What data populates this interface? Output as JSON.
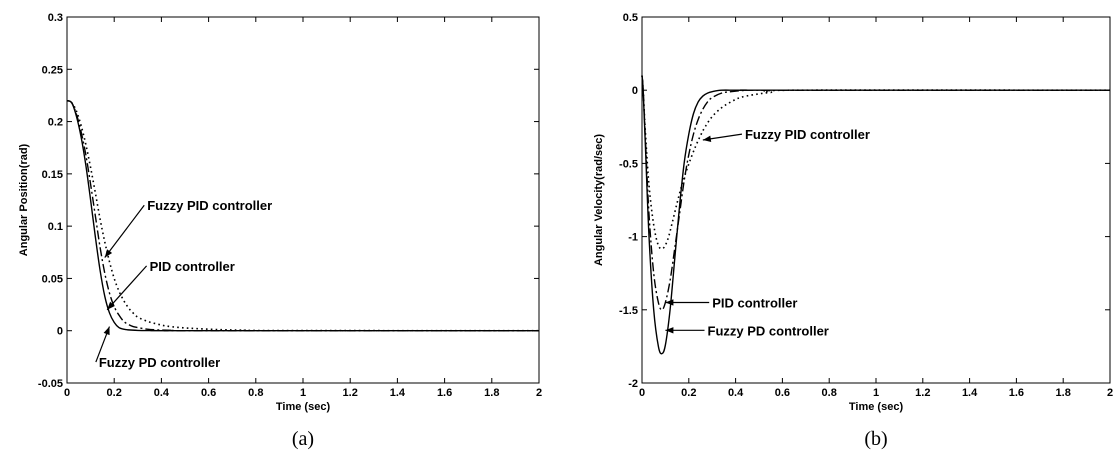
{
  "chart_data": [
    {
      "type": "line",
      "caption": "(a)",
      "xlabel": "Time (sec)",
      "ylabel": "Angular Position(rad)",
      "xlim": [
        0,
        2
      ],
      "ylim": [
        -0.05,
        0.3
      ],
      "xticks": [
        "0",
        "0.2",
        "0.4",
        "0.6",
        "0.8",
        "1",
        "1.2",
        "1.4",
        "1.6",
        "1.8",
        "2"
      ],
      "yticks": [
        "-0.05",
        "0",
        "0.05",
        "0.1",
        "0.15",
        "0.2",
        "0.25",
        "0.3"
      ],
      "grid": false,
      "series": [
        {
          "name": "Fuzzy PD controller",
          "style": "solid",
          "x": [
            0,
            0.02,
            0.04,
            0.06,
            0.08,
            0.1,
            0.12,
            0.14,
            0.16,
            0.18,
            0.2,
            0.22,
            0.24,
            0.26,
            0.3,
            0.35,
            0.4,
            0.5,
            2.0
          ],
          "y": [
            0.22,
            0.218,
            0.205,
            0.185,
            0.158,
            0.125,
            0.09,
            0.058,
            0.033,
            0.017,
            0.008,
            0.003,
            0.0015,
            0.0008,
            0.0003,
            0.0001,
            0,
            0,
            0
          ]
        },
        {
          "name": "PID controller",
          "style": "dashdot",
          "x": [
            0,
            0.02,
            0.04,
            0.06,
            0.08,
            0.1,
            0.12,
            0.14,
            0.16,
            0.18,
            0.2,
            0.22,
            0.24,
            0.26,
            0.28,
            0.3,
            0.34,
            0.38,
            0.45,
            0.55,
            2.0
          ],
          "y": [
            0.22,
            0.218,
            0.207,
            0.19,
            0.168,
            0.14,
            0.11,
            0.08,
            0.055,
            0.036,
            0.023,
            0.015,
            0.009,
            0.006,
            0.004,
            0.003,
            0.0015,
            0.0008,
            0.0003,
            0,
            0
          ]
        },
        {
          "name": "Fuzzy PID controller",
          "style": "dotted",
          "x": [
            0,
            0.02,
            0.04,
            0.06,
            0.08,
            0.1,
            0.12,
            0.14,
            0.16,
            0.18,
            0.2,
            0.22,
            0.24,
            0.26,
            0.28,
            0.3,
            0.34,
            0.38,
            0.42,
            0.48,
            0.55,
            0.65,
            0.75,
            0.85,
            2.0
          ],
          "y": [
            0.22,
            0.218,
            0.21,
            0.196,
            0.178,
            0.156,
            0.132,
            0.107,
            0.085,
            0.066,
            0.05,
            0.038,
            0.029,
            0.022,
            0.017,
            0.013,
            0.009,
            0.0065,
            0.0045,
            0.003,
            0.002,
            0.001,
            0.0005,
            0.0002,
            0
          ]
        }
      ],
      "annotations": [
        {
          "text": "Fuzzy PID controller",
          "x": 0.34,
          "y": 0.12,
          "target": [
            0.16,
            0.07
          ]
        },
        {
          "text": "PID controller",
          "x": 0.35,
          "y": 0.062,
          "target": [
            0.17,
            0.02
          ]
        },
        {
          "text": "Fuzzy PD controller",
          "x": 0.135,
          "y": -0.03,
          "target": [
            0.18,
            0.004
          ]
        }
      ]
    },
    {
      "type": "line",
      "caption": "(b)",
      "xlabel": "Time (sec)",
      "ylabel": "Angular Velocity(rad/sec)",
      "xlim": [
        0,
        2
      ],
      "ylim": [
        -2,
        0.5
      ],
      "xticks": [
        "0",
        "0.2",
        "0.4",
        "0.6",
        "0.8",
        "1",
        "1.2",
        "1.4",
        "1.6",
        "1.8",
        "2"
      ],
      "yticks": [
        "-2",
        "-1.5",
        "-1",
        "-0.5",
        "0",
        "0.5"
      ],
      "grid": false,
      "series": [
        {
          "name": "Fuzzy PD controller",
          "style": "solid",
          "x": [
            0,
            0.005,
            0.015,
            0.03,
            0.05,
            0.07,
            0.085,
            0.1,
            0.12,
            0.14,
            0.16,
            0.18,
            0.2,
            0.22,
            0.24,
            0.26,
            0.28,
            0.3,
            0.34,
            0.4,
            0.5,
            2.0
          ],
          "y": [
            0.1,
            0.0,
            -0.4,
            -1.0,
            -1.5,
            -1.75,
            -1.8,
            -1.74,
            -1.5,
            -1.15,
            -0.8,
            -0.5,
            -0.3,
            -0.16,
            -0.08,
            -0.04,
            -0.02,
            -0.01,
            0,
            0,
            0,
            0
          ]
        },
        {
          "name": "PID controller",
          "style": "dashdot",
          "x": [
            0,
            0.005,
            0.015,
            0.03,
            0.05,
            0.07,
            0.085,
            0.1,
            0.12,
            0.14,
            0.16,
            0.18,
            0.2,
            0.22,
            0.24,
            0.26,
            0.28,
            0.3,
            0.34,
            0.38,
            0.45,
            0.55,
            2.0
          ],
          "y": [
            0.1,
            0.0,
            -0.35,
            -0.85,
            -1.25,
            -1.45,
            -1.5,
            -1.45,
            -1.3,
            -1.08,
            -0.85,
            -0.62,
            -0.44,
            -0.3,
            -0.2,
            -0.13,
            -0.08,
            -0.05,
            -0.02,
            -0.01,
            0,
            0,
            0
          ]
        },
        {
          "name": "Fuzzy PID controller",
          "style": "dotted",
          "x": [
            0,
            0.005,
            0.015,
            0.03,
            0.05,
            0.07,
            0.09,
            0.11,
            0.13,
            0.15,
            0.17,
            0.19,
            0.21,
            0.23,
            0.25,
            0.27,
            0.3,
            0.34,
            0.38,
            0.42,
            0.48,
            0.55,
            0.65,
            2.0
          ],
          "y": [
            0.1,
            0.0,
            -0.3,
            -0.65,
            -0.92,
            -1.06,
            -1.08,
            -1.02,
            -0.9,
            -0.77,
            -0.65,
            -0.55,
            -0.46,
            -0.38,
            -0.31,
            -0.25,
            -0.18,
            -0.12,
            -0.08,
            -0.05,
            -0.03,
            -0.015,
            0,
            0
          ]
        }
      ],
      "annotations": [
        {
          "text": "Fuzzy PID controller",
          "x": 0.44,
          "y": -0.3,
          "target": [
            0.26,
            -0.34
          ]
        },
        {
          "text": "PID controller",
          "x": 0.3,
          "y": -1.45,
          "target": [
            0.1,
            -1.45
          ]
        },
        {
          "text": "Fuzzy PD controller",
          "x": 0.28,
          "y": -1.64,
          "target": [
            0.1,
            -1.64
          ]
        }
      ]
    }
  ]
}
